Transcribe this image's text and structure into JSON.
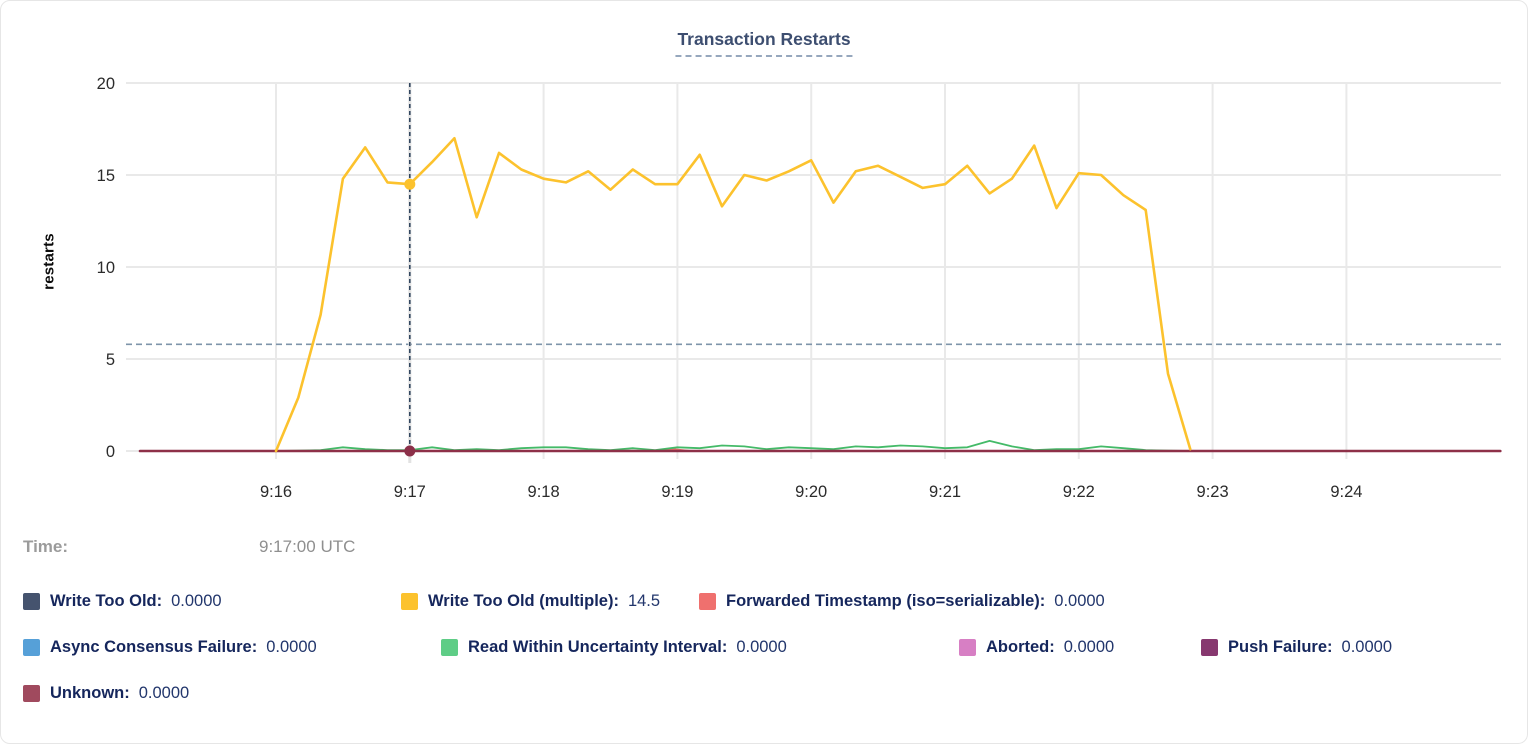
{
  "title": "Transaction Restarts",
  "tooltip": {
    "time_label": "Time:",
    "time_value": "9:17:00 UTC"
  },
  "chart_data": {
    "type": "line",
    "title": "Transaction Restarts",
    "xlabel": "",
    "ylabel": "restarts",
    "ylim": [
      0,
      20
    ],
    "yticks": [
      "0",
      "5",
      "10",
      "15",
      "20"
    ],
    "xticks": [
      "9:16",
      "9:17",
      "9:18",
      "9:19",
      "9:20",
      "9:21",
      "9:22",
      "9:23",
      "9:24"
    ],
    "grid": true,
    "legend_position": "bottom",
    "threshold_rule_value": 5.8,
    "crosshair": {
      "time": "9:17:00 UTC",
      "series": "Write Too Old (multiple)",
      "value": 14.5
    },
    "series": [
      {
        "name": "Forwarded Timestamp (iso=serializable)",
        "color": "#ef706e",
        "x": [
          -61,
          160,
          170,
          178,
          186,
          549
        ],
        "values": [
          0,
          0,
          0,
          0.1,
          0,
          0
        ]
      },
      {
        "name": "Read Within Uncertainty Interval",
        "color": "#44ba68",
        "x": [
          0,
          10,
          20,
          30,
          40,
          50,
          60,
          70,
          80,
          90,
          100,
          110,
          120,
          130,
          140,
          150,
          160,
          170,
          180,
          190,
          200,
          210,
          220,
          230,
          240,
          250,
          260,
          270,
          280,
          290,
          300,
          310,
          320,
          330,
          340,
          350,
          360,
          370,
          380,
          390,
          400,
          410
        ],
        "values": [
          0,
          0.02,
          0.05,
          0.2,
          0.1,
          0.05,
          0.05,
          0.2,
          0.05,
          0.1,
          0.05,
          0.15,
          0.2,
          0.2,
          0.1,
          0.05,
          0.15,
          0.05,
          0.2,
          0.15,
          0.3,
          0.25,
          0.1,
          0.2,
          0.15,
          0.1,
          0.25,
          0.2,
          0.3,
          0.25,
          0.15,
          0.2,
          0.55,
          0.25,
          0.05,
          0.1,
          0.1,
          0.25,
          0.15,
          0.05,
          0.02,
          0
        ]
      },
      {
        "name": "Unknown",
        "color": "#8e3048",
        "x": [
          -61,
          549
        ],
        "values": [
          0,
          0
        ]
      },
      {
        "name": "Write Too Old (multiple)",
        "color": "#fcc22d",
        "x": [
          0,
          10,
          20,
          30,
          40,
          50,
          60,
          70,
          80,
          90,
          100,
          110,
          120,
          130,
          140,
          150,
          160,
          170,
          180,
          190,
          200,
          210,
          220,
          230,
          240,
          250,
          260,
          270,
          280,
          290,
          300,
          310,
          320,
          330,
          340,
          350,
          360,
          370,
          380,
          390,
          400,
          410
        ],
        "values": [
          0,
          2.9,
          7.4,
          14.8,
          16.5,
          14.6,
          14.5,
          15.7,
          17.0,
          12.7,
          16.2,
          15.3,
          14.8,
          14.6,
          15.2,
          14.2,
          15.3,
          14.5,
          14.5,
          16.1,
          13.3,
          15.0,
          14.7,
          15.2,
          15.8,
          13.5,
          15.2,
          15.5,
          14.9,
          14.3,
          14.5,
          15.5,
          14.0,
          14.8,
          16.6,
          13.2,
          15.1,
          15.0,
          13.9,
          13.1,
          4.2,
          0.1
        ]
      }
    ]
  },
  "legend": {
    "items": [
      {
        "id": "write-too-old",
        "label": "Write Too Old:",
        "value": "0.0000",
        "color": "#45536e"
      },
      {
        "id": "write-too-old-multiple",
        "label": "Write Too Old (multiple):",
        "value": "14.5",
        "color": "#fcc22d"
      },
      {
        "id": "forwarded-timestamp",
        "label": "Forwarded Timestamp (iso=serializable):",
        "value": "0.0000",
        "color": "#ef706e"
      },
      {
        "id": "async-consensus-failure",
        "label": "Async Consensus Failure:",
        "value": "0.0000",
        "color": "#56a0d8"
      },
      {
        "id": "read-within-uncertainty-interval",
        "label": "Read Within Uncertainty Interval:",
        "value": "0.0000",
        "color": "#5ecd86"
      },
      {
        "id": "aborted",
        "label": "Aborted:",
        "value": "0.0000",
        "color": "#d77fc4"
      },
      {
        "id": "push-failure",
        "label": "Push Failure:",
        "value": "0.0000",
        "color": "#87386f"
      },
      {
        "id": "unknown",
        "label": "Unknown:",
        "value": "0.0000",
        "color": "#a04a5e"
      }
    ]
  },
  "colors": {
    "grid": "#e9e9e9",
    "axis_text": "#2b2b2b",
    "title_text": "#3d4e70",
    "threshold_rule": "#7e94aa",
    "crosshair": "#31465f",
    "crosshair_band": "#e2e2e2",
    "highlight_dot_top": "#fcc22d",
    "highlight_dot_bottom": "#8c3049"
  }
}
